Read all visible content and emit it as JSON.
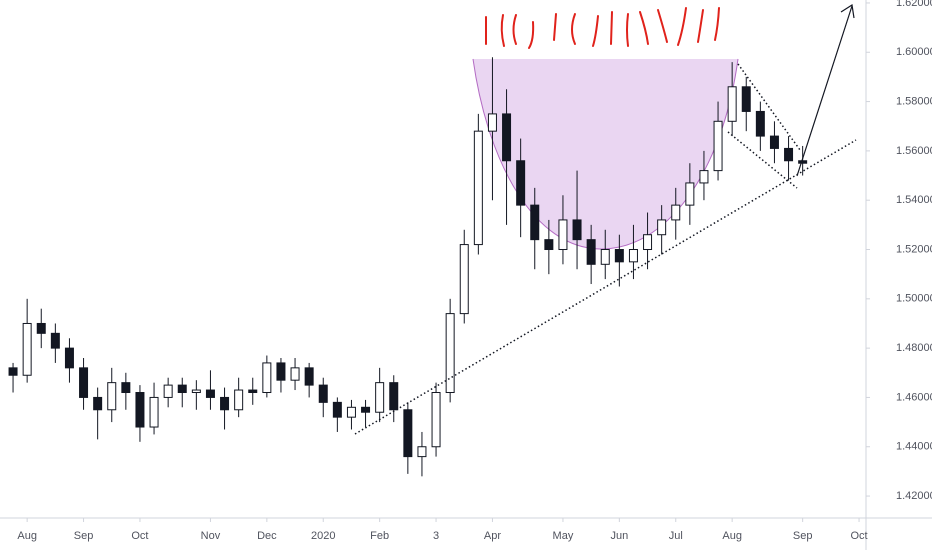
{
  "chart_data": {
    "type": "candlestick",
    "categories": [
      null,
      "Aug",
      null,
      null,
      null,
      "Sep",
      null,
      null,
      null,
      "Oct",
      null,
      null,
      null,
      null,
      "Nov",
      null,
      null,
      null,
      "Dec",
      null,
      null,
      null,
      "2020",
      null,
      null,
      null,
      "Feb",
      null,
      null,
      null,
      "3",
      null,
      null,
      null,
      "Apr",
      null,
      null,
      null,
      null,
      "May",
      null,
      null,
      null,
      "Jun",
      null,
      null,
      null,
      "Jul",
      null,
      null,
      null,
      "Aug",
      null,
      null,
      null,
      null,
      "Sep",
      null,
      null,
      null,
      "Oct"
    ],
    "open": [
      1.472,
      1.469,
      1.49,
      1.486,
      1.48,
      1.472,
      1.46,
      1.455,
      1.466,
      1.462,
      1.448,
      1.46,
      1.465,
      1.462,
      1.463,
      1.46,
      1.455,
      1.463,
      1.462,
      1.474,
      1.467,
      1.472,
      1.465,
      1.458,
      1.452,
      1.456,
      1.454,
      1.466,
      1.455,
      1.436,
      1.44,
      1.462,
      1.494,
      1.522,
      1.568,
      1.575,
      1.556,
      1.538,
      1.524,
      1.52,
      1.532,
      1.524,
      1.514,
      1.52,
      1.515,
      1.52,
      1.526,
      1.532,
      1.538,
      1.547,
      1.552,
      1.572,
      1.586,
      1.576,
      1.566,
      1.561,
      1.556,
      null,
      null,
      null,
      null
    ],
    "high": [
      1.474,
      1.5,
      1.496,
      1.49,
      1.484,
      1.476,
      1.464,
      1.472,
      1.47,
      1.465,
      1.466,
      1.468,
      1.468,
      1.467,
      1.471,
      1.464,
      1.468,
      1.468,
      1.477,
      1.476,
      1.476,
      1.474,
      1.468,
      1.46,
      1.459,
      1.459,
      1.472,
      1.469,
      1.458,
      1.446,
      1.466,
      1.5,
      1.528,
      1.575,
      1.598,
      1.585,
      1.565,
      1.545,
      1.532,
      1.542,
      1.552,
      1.53,
      1.528,
      1.526,
      1.53,
      1.535,
      1.538,
      1.545,
      1.555,
      1.56,
      1.58,
      1.596,
      1.59,
      1.58,
      1.572,
      1.566,
      1.562,
      null,
      null,
      null,
      null
    ],
    "low": [
      1.462,
      1.466,
      1.48,
      1.474,
      1.466,
      1.455,
      1.443,
      1.45,
      1.455,
      1.442,
      1.445,
      1.456,
      1.456,
      1.455,
      1.455,
      1.447,
      1.452,
      1.457,
      1.46,
      1.462,
      1.463,
      1.46,
      1.452,
      1.446,
      1.447,
      1.448,
      1.45,
      1.45,
      1.429,
      1.428,
      1.436,
      1.458,
      1.49,
      1.518,
      1.54,
      1.53,
      1.525,
      1.512,
      1.51,
      1.514,
      1.512,
      1.506,
      1.508,
      1.505,
      1.508,
      1.512,
      1.518,
      1.524,
      1.53,
      1.54,
      1.548,
      1.566,
      1.568,
      1.56,
      1.555,
      1.548,
      1.55,
      null,
      null,
      null,
      null
    ],
    "close": [
      1.469,
      1.49,
      1.486,
      1.48,
      1.472,
      1.46,
      1.455,
      1.466,
      1.462,
      1.448,
      1.46,
      1.465,
      1.462,
      1.463,
      1.46,
      1.455,
      1.463,
      1.462,
      1.474,
      1.467,
      1.472,
      1.465,
      1.458,
      1.452,
      1.456,
      1.454,
      1.466,
      1.455,
      1.436,
      1.44,
      1.462,
      1.494,
      1.522,
      1.568,
      1.575,
      1.556,
      1.538,
      1.524,
      1.52,
      1.532,
      1.524,
      1.514,
      1.52,
      1.515,
      1.52,
      1.526,
      1.532,
      1.538,
      1.547,
      1.552,
      1.572,
      1.586,
      1.576,
      1.566,
      1.561,
      1.556,
      1.555,
      null,
      null,
      null,
      null
    ],
    "up_color": "#ffffff",
    "down_color": "#131722",
    "wick_color": "#131722",
    "ylim": [
      1.4111,
      1.6212
    ],
    "yticks": [
      {
        "value": 1.42,
        "label": "1.42000"
      },
      {
        "value": 1.44,
        "label": "1.44000"
      },
      {
        "value": 1.46,
        "label": "1.46000"
      },
      {
        "value": 1.48,
        "label": "1.48000"
      },
      {
        "value": 1.5,
        "label": "1.50000"
      },
      {
        "value": 1.52,
        "label": "1.52000"
      },
      {
        "value": 1.54,
        "label": "1.54000"
      },
      {
        "value": 1.56,
        "label": "1.56000"
      },
      {
        "value": 1.58,
        "label": "1.58000"
      },
      {
        "value": 1.6,
        "label": "1.60000"
      },
      {
        "value": 1.62,
        "label": "1.62000"
      }
    ],
    "grid": false
  }
}
